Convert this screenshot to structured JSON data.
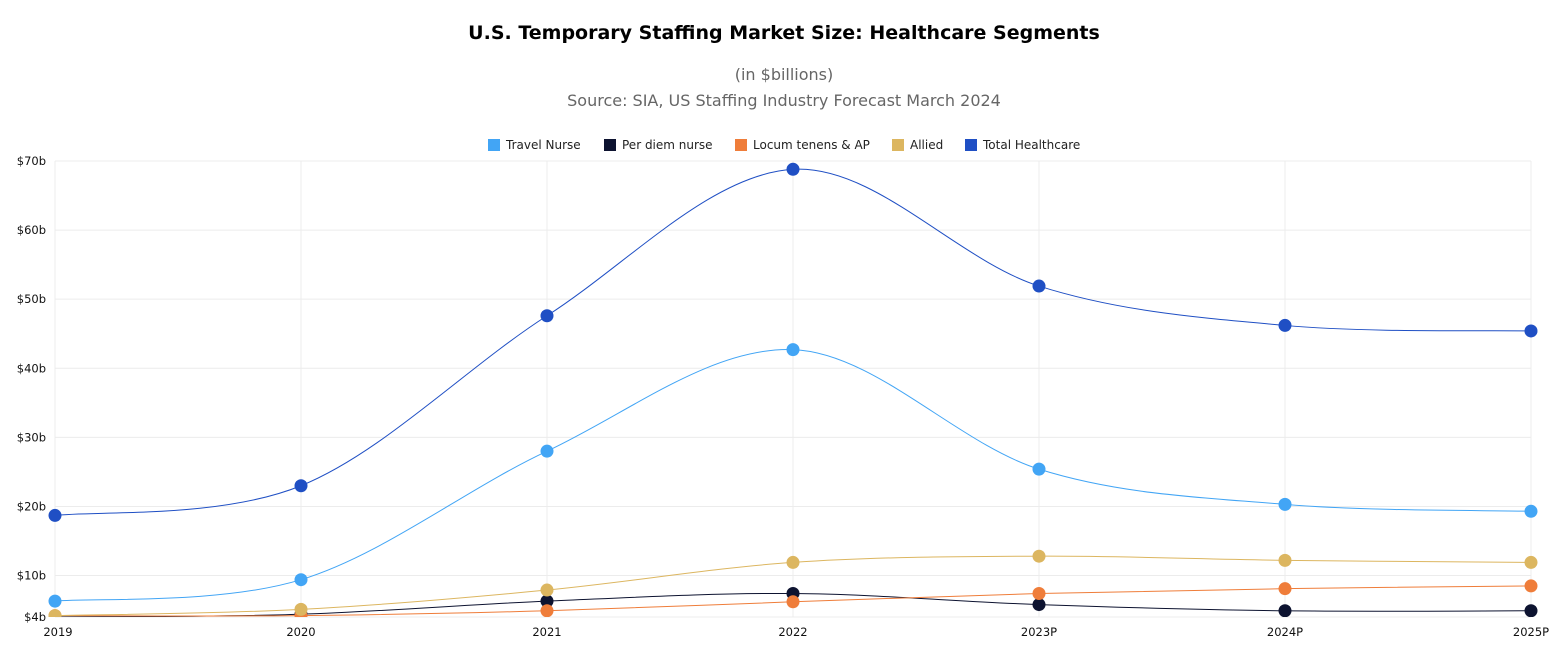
{
  "chart_data": {
    "type": "line",
    "title": "U.S. Temporary Staffing Market Size: Healthcare Segments",
    "subtitle": "(in $billions)",
    "source": "Source: SIA, US Staffing Industry Forecast March 2024",
    "categories": [
      "2019",
      "2020",
      "2021",
      "2022",
      "2023P",
      "2024P",
      "2025P"
    ],
    "y_ticks": [
      4,
      10,
      20,
      30,
      40,
      50,
      60,
      70
    ],
    "y_tick_labels": [
      "$4b",
      "$10b",
      "$20b",
      "$30b",
      "$40b",
      "$50b",
      "$60b",
      "$70b"
    ],
    "ylim": [
      4,
      70
    ],
    "grid": true,
    "legend_placement": "top",
    "smooth": true,
    "series": [
      {
        "name": "Travel Nurse",
        "color": "#42a5f5",
        "values": [
          6.3,
          9.4,
          28.0,
          42.7,
          25.4,
          20.3,
          19.3
        ]
      },
      {
        "name": "Per diem nurse",
        "color": "#0d1330",
        "values": [
          4.0,
          4.4,
          6.3,
          7.4,
          5.8,
          4.9,
          4.9
        ]
      },
      {
        "name": "Locum tenens & AP",
        "color": "#ef7d3a",
        "values": [
          4.2,
          4.2,
          4.9,
          6.2,
          7.4,
          8.1,
          8.5
        ]
      },
      {
        "name": "Allied",
        "color": "#dcb660",
        "values": [
          4.2,
          5.1,
          7.9,
          11.9,
          12.8,
          12.2,
          11.9
        ]
      },
      {
        "name": "Total Healthcare",
        "color": "#1f4fc4",
        "values": [
          18.7,
          23.0,
          47.6,
          68.8,
          51.9,
          46.2,
          45.4
        ]
      }
    ]
  }
}
